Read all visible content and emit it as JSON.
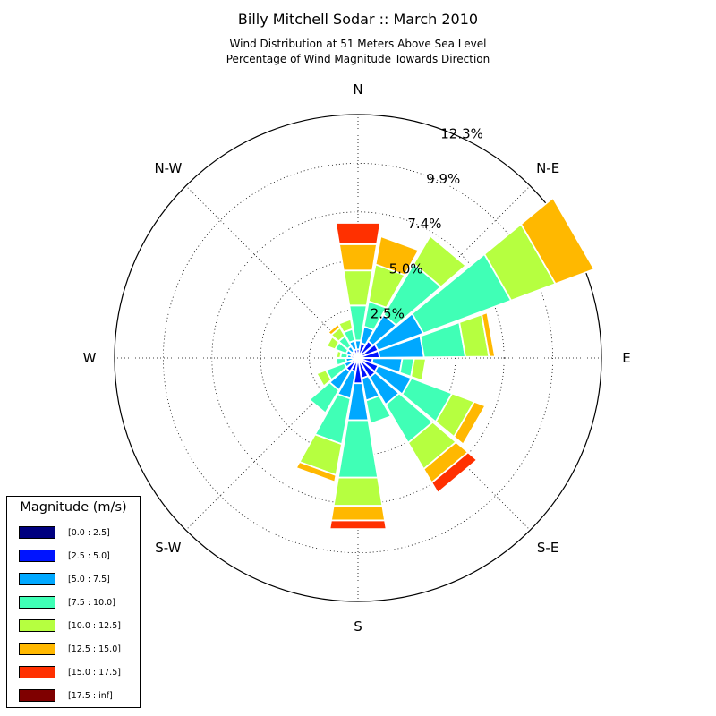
{
  "title": "Billy Mitchell Sodar :: March 2010",
  "subtitle_lines": [
    "Wind Distribution at 51 Meters Above Sea Level",
    "Percentage of Wind Magnitude Towards Direction"
  ],
  "legend": {
    "title": "Magnitude (m/s)",
    "items": [
      {
        "label": "[0.0 : 2.5]",
        "color": "#00007f"
      },
      {
        "label": "[2.5 : 5.0]",
        "color": "#0014ff"
      },
      {
        "label": "[5.0 : 7.5]",
        "color": "#00a8ff"
      },
      {
        "label": "[7.5 : 10.0]",
        "color": "#40ffb6"
      },
      {
        "label": "[10.0 : 12.5]",
        "color": "#b6ff40"
      },
      {
        "label": "[12.5 : 15.0]",
        "color": "#ffb800"
      },
      {
        "label": "[15.0 : 17.5]",
        "color": "#ff3000"
      },
      {
        "label": "[17.5 : inf]",
        "color": "#7f0000"
      }
    ]
  },
  "chart_data": {
    "type": "windrose",
    "direction_labels": [
      "N",
      "N-E",
      "E",
      "S-E",
      "S",
      "S-W",
      "W",
      "N-W"
    ],
    "radial_tick_labels": [
      "2.5%",
      "5.0%",
      "7.4%",
      "9.9%",
      "12.3%"
    ],
    "radial_ticks": [
      2.47,
      4.94,
      7.41,
      9.88,
      12.35
    ],
    "rmax": 12.35,
    "sector_width_deg": 20,
    "sectors": [
      {
        "dir_deg": 0,
        "segments": [
          0.18,
          0.27,
          0.45,
          1.8,
          1.8,
          1.35,
          1.1
        ]
      },
      {
        "dir_deg": 20,
        "segments": [
          0.18,
          0.6,
          0.85,
          1.3,
          1.9,
          1.45
        ]
      },
      {
        "dir_deg": 40,
        "segments": [
          0.2,
          0.8,
          1.55,
          3.0,
          1.65
        ]
      },
      {
        "dir_deg": 60,
        "segments": [
          0.2,
          0.9,
          2.45,
          4.75,
          2.4,
          2.1
        ]
      },
      {
        "dir_deg": 80,
        "segments": [
          0.2,
          0.9,
          2.25,
          2.1,
          1.2,
          0.3
        ]
      },
      {
        "dir_deg": 100,
        "segments": [
          0.2,
          0.55,
          1.5,
          0.6,
          0.6
        ]
      },
      {
        "dir_deg": 120,
        "segments": [
          0.3,
          0.8,
          1.8,
          2.2,
          1.2,
          0.6
        ]
      },
      {
        "dir_deg": 140,
        "segments": [
          0.25,
          0.9,
          1.6,
          2.25,
          1.55,
          0.8,
          0.6
        ]
      },
      {
        "dir_deg": 160,
        "segments": [
          0.25,
          0.8,
          1.15,
          1.2
        ]
      },
      {
        "dir_deg": 180,
        "segments": [
          0.2,
          1.1,
          1.9,
          2.95,
          1.45,
          0.75,
          0.45
        ]
      },
      {
        "dir_deg": 200,
        "segments": [
          0.2,
          0.5,
          1.4,
          2.35,
          1.6,
          0.35
        ]
      },
      {
        "dir_deg": 220,
        "segments": [
          0.2,
          0.6,
          1.1,
          1.35
        ]
      },
      {
        "dir_deg": 240,
        "segments": [
          0.15,
          0.2,
          0.4,
          1.0,
          0.5
        ]
      },
      {
        "dir_deg": 260,
        "segments": [
          0.12,
          0.15,
          0.35,
          0.5
        ]
      },
      {
        "dir_deg": 280,
        "segments": [
          0.15,
          0.2,
          0.2,
          0.35,
          0.2
        ]
      },
      {
        "dir_deg": 300,
        "segments": [
          0.15,
          0.2,
          0.3,
          0.6,
          0.45
        ]
      },
      {
        "dir_deg": 320,
        "segments": [
          0.15,
          0.25,
          0.3,
          0.6,
          0.5,
          0.2
        ]
      },
      {
        "dir_deg": 340,
        "segments": [
          0.15,
          0.3,
          0.45,
          0.6,
          0.5
        ]
      }
    ]
  }
}
